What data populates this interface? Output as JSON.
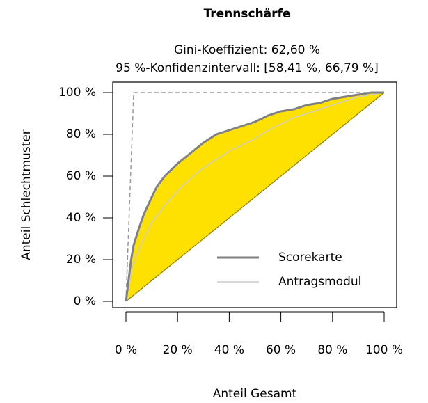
{
  "chart_data": {
    "type": "line",
    "title": "Trennschärfe",
    "subtitle": [
      "Gini-Koeffizient: 62,60 %",
      "95 %-Konfidenzintervall: [58,41 %, 66,79 %]"
    ],
    "xlabel": "Anteil Gesamt",
    "ylabel": "Anteil Schlechtmuster",
    "xlim": [
      0,
      100
    ],
    "ylim": [
      0,
      100
    ],
    "xticks": [
      {
        "value": 0,
        "label": "0 %"
      },
      {
        "value": 20,
        "label": "20 %"
      },
      {
        "value": 40,
        "label": "40 %"
      },
      {
        "value": 60,
        "label": "60 %"
      },
      {
        "value": 80,
        "label": "80 %"
      },
      {
        "value": 100,
        "label": "100 %"
      }
    ],
    "yticks": [
      {
        "value": 0,
        "label": "0 %"
      },
      {
        "value": 20,
        "label": "20 %"
      },
      {
        "value": 40,
        "label": "40 %"
      },
      {
        "value": 60,
        "label": "60 %"
      },
      {
        "value": 80,
        "label": "80 %"
      },
      {
        "value": 100,
        "label": "100 %"
      }
    ],
    "fill_color": "#ffe100",
    "ideal": {
      "color": "#999999",
      "x": [
        0,
        3,
        100
      ],
      "values": [
        0,
        100,
        100
      ]
    },
    "series": [
      {
        "name": "Scorekarte",
        "color": "#808080",
        "x": [
          0,
          1,
          2,
          3,
          5,
          7,
          10,
          12,
          15,
          20,
          25,
          30,
          35,
          40,
          45,
          50,
          55,
          60,
          65,
          70,
          75,
          80,
          85,
          90,
          95,
          100
        ],
        "values": [
          0,
          10,
          20,
          27,
          35,
          42,
          50,
          55,
          60,
          66,
          71,
          76,
          80,
          82,
          84,
          86,
          89,
          91,
          92,
          94,
          95,
          97,
          98,
          99,
          100,
          100
        ]
      },
      {
        "name": "Antragsmodul",
        "color": "#cccccc",
        "x": [
          0,
          1,
          2,
          4,
          6,
          8,
          10,
          15,
          20,
          25,
          30,
          35,
          40,
          45,
          50,
          55,
          60,
          65,
          70,
          75,
          80,
          85,
          90,
          95,
          100
        ],
        "values": [
          0,
          7,
          14,
          22,
          28,
          33,
          38,
          46,
          53,
          59,
          64,
          68,
          72,
          75,
          78,
          82,
          85,
          88,
          90,
          92,
          94,
          96,
          98,
          99,
          100
        ]
      }
    ]
  }
}
